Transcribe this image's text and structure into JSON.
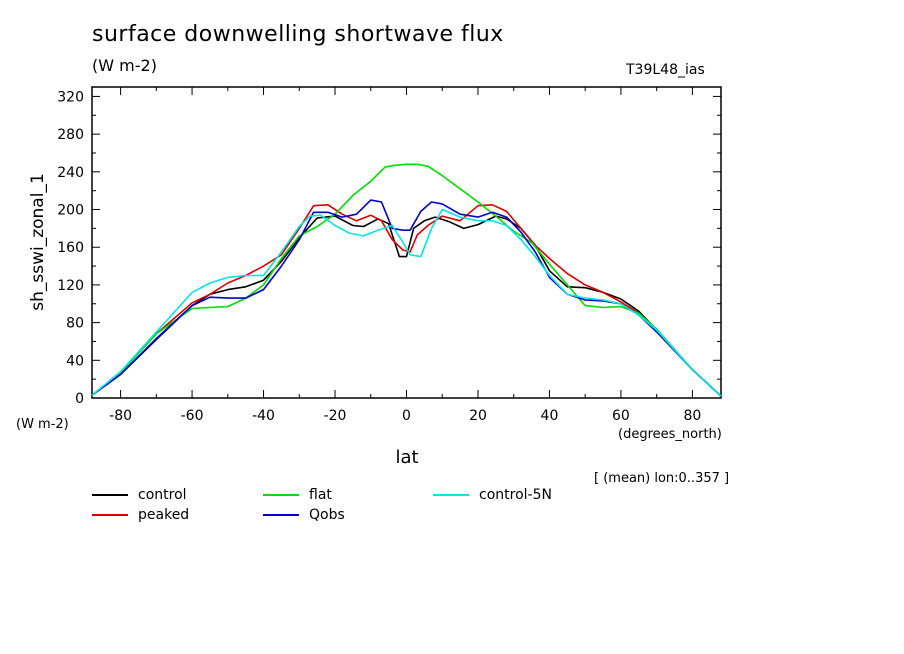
{
  "header": {
    "title": "surface downwelling shortwave flux",
    "units": "(W m-2)",
    "experiment": "T39L48_ias"
  },
  "footer": {
    "yunit": "(W m-2)",
    "xunit": "(degrees_north)",
    "note": "[ (mean) lon:0..357 ]"
  },
  "chart_data": {
    "type": "line",
    "xlabel": "lat",
    "ylabel": "sh_sswi_zonal_1",
    "xlim": [
      -88,
      88
    ],
    "ylim": [
      0,
      330
    ],
    "xticks": [
      -80,
      -60,
      -40,
      -20,
      0,
      20,
      40,
      60,
      80
    ],
    "yticks": [
      0,
      40,
      80,
      120,
      160,
      200,
      240,
      280,
      320
    ],
    "grid": false,
    "legend_position": "bottom",
    "series": [
      {
        "name": "control",
        "color": "#000000",
        "x": [
          -88,
          -80,
          -70,
          -60,
          -55,
          -50,
          -45,
          -40,
          -35,
          -30,
          -25,
          -20,
          -15,
          -12,
          -8,
          -5,
          -2,
          0,
          2,
          5,
          8,
          12,
          16,
          20,
          25,
          28,
          32,
          36,
          40,
          45,
          50,
          55,
          60,
          65,
          70,
          80,
          88
        ],
        "y": [
          3,
          25,
          62,
          98,
          110,
          115,
          118,
          125,
          145,
          170,
          191,
          193,
          183,
          182,
          190,
          185,
          150,
          150,
          180,
          188,
          192,
          187,
          180,
          184,
          193,
          190,
          180,
          162,
          135,
          118,
          117,
          112,
          105,
          92,
          72,
          30,
          2
        ]
      },
      {
        "name": "peaked",
        "color": "#dd0000",
        "x": [
          -88,
          -80,
          -70,
          -60,
          -55,
          -50,
          -45,
          -40,
          -35,
          -30,
          -26,
          -22,
          -18,
          -14,
          -10,
          -7,
          -4,
          -1,
          1,
          3,
          6,
          10,
          15,
          20,
          24,
          28,
          32,
          36,
          40,
          45,
          50,
          55,
          60,
          65,
          70,
          80,
          88
        ],
        "y": [
          3,
          27,
          68,
          101,
          110,
          122,
          130,
          140,
          152,
          180,
          204,
          205,
          195,
          188,
          194,
          188,
          168,
          157,
          155,
          173,
          183,
          193,
          188,
          204,
          205,
          198,
          180,
          162,
          148,
          132,
          120,
          112,
          102,
          90,
          72,
          30,
          2
        ]
      },
      {
        "name": "flat",
        "color": "#00dd00",
        "x": [
          -88,
          -80,
          -70,
          -60,
          -55,
          -50,
          -45,
          -40,
          -35,
          -30,
          -25,
          -20,
          -15,
          -10,
          -6,
          -3,
          0,
          3,
          6,
          10,
          15,
          20,
          25,
          30,
          35,
          40,
          45,
          50,
          55,
          60,
          65,
          70,
          80,
          88
        ],
        "y": [
          3,
          27,
          68,
          95,
          96,
          97,
          106,
          120,
          148,
          172,
          182,
          195,
          215,
          230,
          245,
          247,
          248,
          248,
          246,
          236,
          222,
          208,
          193,
          177,
          165,
          142,
          120,
          98,
          96,
          97,
          90,
          73,
          30,
          2
        ]
      },
      {
        "name": "Qobs",
        "color": "#0000cc",
        "x": [
          -88,
          -80,
          -70,
          -60,
          -55,
          -50,
          -45,
          -40,
          -35,
          -30,
          -26,
          -22,
          -18,
          -14,
          -10,
          -7,
          -4,
          -1,
          1,
          4,
          7,
          10,
          15,
          20,
          24,
          28,
          32,
          36,
          40,
          45,
          50,
          55,
          60,
          65,
          70,
          80,
          88
        ],
        "y": [
          3,
          25,
          63,
          98,
          107,
          106,
          106,
          115,
          140,
          168,
          197,
          197,
          192,
          195,
          210,
          208,
          180,
          178,
          178,
          198,
          208,
          206,
          195,
          192,
          197,
          192,
          176,
          155,
          128,
          110,
          104,
          103,
          100,
          88,
          70,
          30,
          2
        ]
      },
      {
        "name": "control-5N",
        "color": "#00e5e5",
        "x": [
          -88,
          -80,
          -70,
          -60,
          -55,
          -50,
          -45,
          -40,
          -35,
          -30,
          -27,
          -24,
          -20,
          -16,
          -12,
          -8,
          -4,
          -1,
          1,
          4,
          7,
          10,
          15,
          20,
          24,
          28,
          32,
          36,
          40,
          45,
          50,
          55,
          60,
          65,
          70,
          80,
          88
        ],
        "y": [
          3,
          28,
          70,
          112,
          122,
          128,
          130,
          130,
          155,
          182,
          193,
          194,
          183,
          175,
          172,
          178,
          183,
          165,
          152,
          150,
          180,
          200,
          192,
          188,
          188,
          183,
          168,
          150,
          130,
          110,
          106,
          104,
          100,
          88,
          72,
          30,
          2
        ]
      }
    ]
  }
}
